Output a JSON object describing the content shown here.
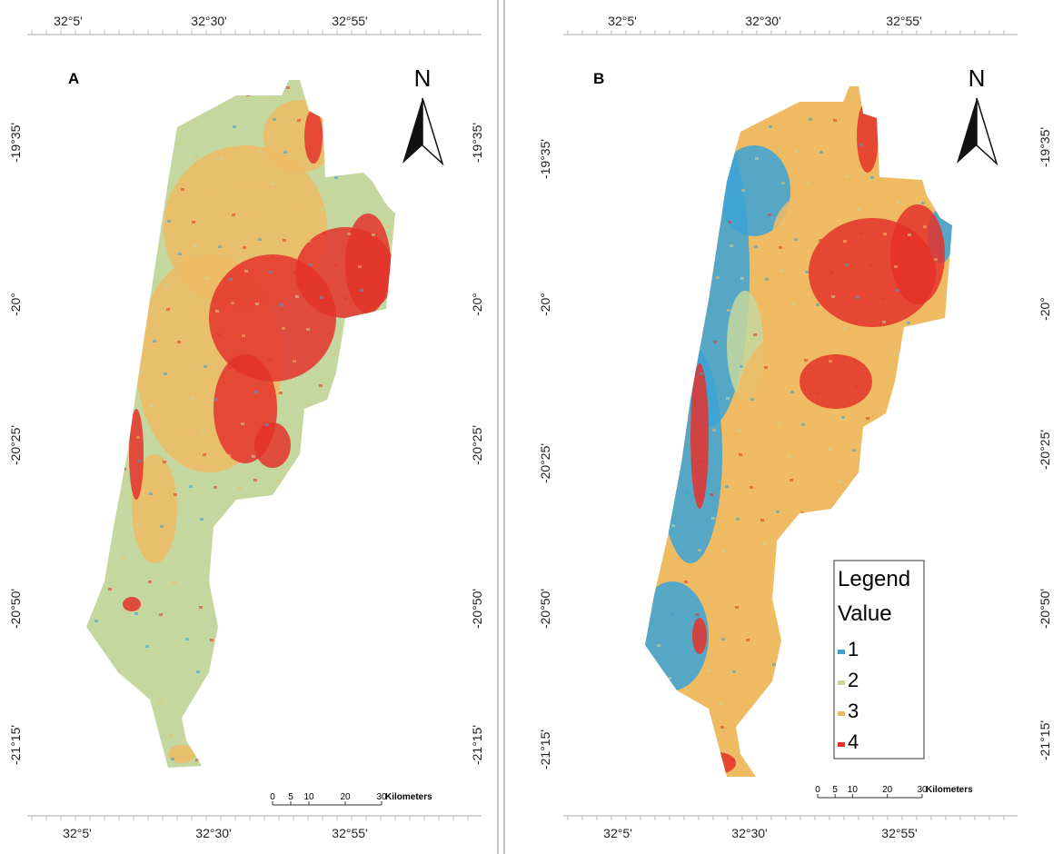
{
  "panels": [
    {
      "label": "A",
      "top_ticks": [
        "32°5'",
        "32°30'",
        "32°55'"
      ],
      "bottom_ticks": [
        "32°5'",
        "32°30'",
        "32°55'"
      ],
      "left_ticks": [
        "-19°35'",
        "-20°",
        "-20°25'",
        "-20°50'",
        "-21°15'"
      ],
      "right_ticks": [
        "-19°35'",
        "-20°",
        "-20°25'",
        "-20°50'",
        "-21°15'"
      ],
      "north": "N",
      "scale": {
        "ticks": [
          0,
          5,
          10,
          20,
          30
        ],
        "unit": "Kilometers"
      }
    },
    {
      "label": "B",
      "top_ticks": [
        "32°5'",
        "32°30'",
        "32°55'"
      ],
      "bottom_ticks": [
        "32°5'",
        "32°30'",
        "32°55'"
      ],
      "left_ticks": [
        "-19°35'",
        "-20°",
        "-20°25'",
        "-20°50'",
        "-21°15'"
      ],
      "right_ticks": [
        "-19°35'",
        "-20°",
        "-20°25'",
        "-20°50'",
        "-21°15'"
      ],
      "north": "N",
      "scale": {
        "ticks": [
          0,
          5,
          10,
          20,
          30
        ],
        "unit": "Kilometers"
      },
      "legend": {
        "title": "Legend",
        "subtitle": "Value",
        "items": [
          {
            "label": "1",
            "color": "#3ba3d6"
          },
          {
            "label": "2",
            "color": "#c4d79e"
          },
          {
            "label": "3",
            "color": "#eebb63"
          },
          {
            "label": "4",
            "color": "#e4332a"
          }
        ]
      }
    }
  ]
}
